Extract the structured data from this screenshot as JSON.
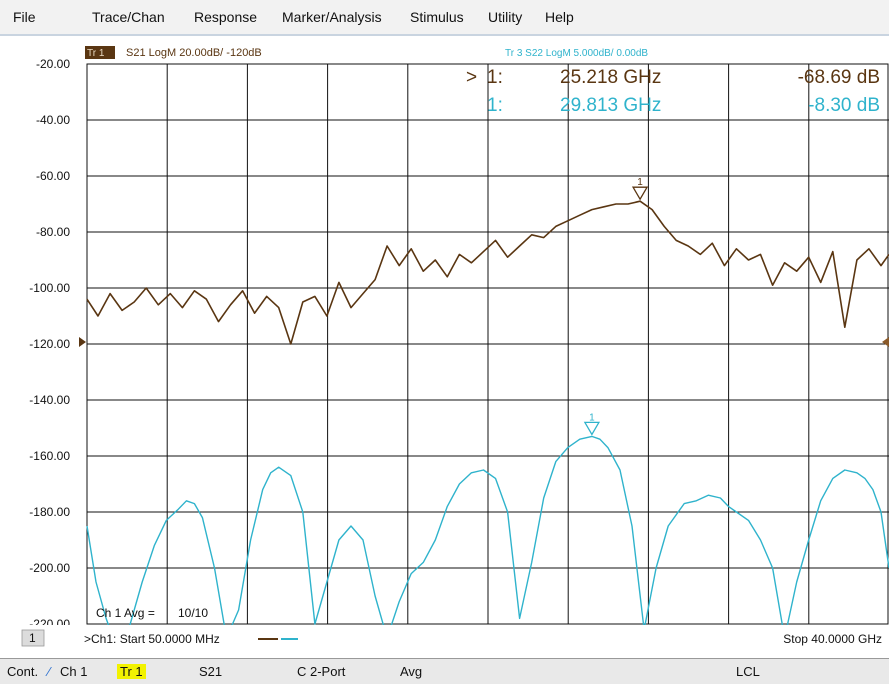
{
  "menu": [
    "File",
    "Trace/Chan",
    "Response",
    "Marker/Analysis",
    "Stimulus",
    "Utility",
    "Help"
  ],
  "trace1": {
    "tag": "Tr 1",
    "label": "S21 LogM 20.00dB/ -120dB",
    "color": "#5a3612",
    "marker": {
      "prefix": ">",
      "id": "1:",
      "freq": "25.218 GHz",
      "value": "-68.69 dB",
      "number": "1"
    }
  },
  "trace3": {
    "label": "Tr 3  S22 LogM 5.000dB/ 0.00dB",
    "color": "#2fb3cc",
    "marker": {
      "id": "1:",
      "freq": "29.813 GHz",
      "value": "-8.30 dB",
      "number": "1"
    }
  },
  "avg_label": "Ch 1 Avg =",
  "avg_value": "10/10",
  "channel_number": "1",
  "start_label": ">Ch1: Start  50.0000 MHz",
  "stop_label": "Stop  40.0000 GHz",
  "status": {
    "cont": "Cont.",
    "ch": "Ch 1",
    "tr": "Tr 1",
    "param": "S21",
    "port": "C  2-Port",
    "avg": "Avg",
    "lcl": "LCL"
  },
  "colors": {
    "grid": "#111111",
    "screen_bg": "#ffffff",
    "trace1": "#5a3612",
    "trace3": "#2fb3cc",
    "menubar": "#f2f2f2",
    "tr_highlight": "#f2f200"
  },
  "chart_data": {
    "type": "line",
    "xlabel": "",
    "ylabel": "",
    "x_range_ghz": [
      0.05,
      40.0
    ],
    "y_range_db_trace1": [
      -220,
      -20
    ],
    "y_ticks": [
      -20,
      -40,
      -60,
      -80,
      -100,
      -120,
      -140,
      -160,
      -180,
      -200,
      -220
    ],
    "grid": true,
    "reference_level_db": -120,
    "series": [
      {
        "name": "S21",
        "x": [
          0.05,
          0.6,
          1.2,
          1.8,
          2.4,
          3.0,
          3.6,
          4.2,
          4.8,
          5.4,
          6.0,
          6.6,
          7.2,
          7.8,
          8.4,
          9.0,
          9.6,
          10.2,
          10.8,
          11.4,
          12.0,
          12.6,
          13.2,
          13.8,
          14.4,
          15.0,
          15.6,
          16.2,
          16.8,
          17.4,
          18.0,
          18.6,
          19.2,
          19.8,
          20.4,
          21.0,
          21.6,
          22.2,
          22.8,
          23.4,
          24.0,
          24.6,
          25.2,
          25.8,
          26.4,
          27.0,
          27.6,
          28.2,
          28.8,
          29.4,
          30.0,
          30.6,
          31.2,
          31.8,
          32.4,
          33.0,
          33.6,
          34.2,
          34.8,
          35.4,
          36.0,
          36.6,
          37.2,
          37.8,
          38.4,
          39.0,
          39.6,
          40.0
        ],
        "values": [
          -104,
          -110,
          -102,
          -108,
          -105,
          -100,
          -106,
          -102,
          -107,
          -101,
          -104,
          -112,
          -106,
          -101,
          -109,
          -103,
          -107,
          -120,
          -105,
          -103,
          -110,
          -98,
          -107,
          -102,
          -97,
          -85,
          -92,
          -86,
          -94,
          -90,
          -96,
          -88,
          -91,
          -87,
          -83,
          -89,
          -85,
          -81,
          -82,
          -78,
          -76,
          -74,
          -72,
          -71,
          -70,
          -70,
          -69,
          -72,
          -78,
          -83,
          -85,
          -88,
          -84,
          -92,
          -86,
          -90,
          -88,
          -99,
          -91,
          -94,
          -89,
          -98,
          -87,
          -114,
          -90,
          -86,
          -92,
          -88
        ]
      },
      {
        "name": "S22",
        "x": [
          0.05,
          0.5,
          1.0,
          1.6,
          2.2,
          2.8,
          3.4,
          4.0,
          4.6,
          5.0,
          5.4,
          5.8,
          6.4,
          7.0,
          7.6,
          8.2,
          8.8,
          9.2,
          9.6,
          10.2,
          10.8,
          11.4,
          12.0,
          12.6,
          13.2,
          13.8,
          14.4,
          15.0,
          15.6,
          16.2,
          16.8,
          17.4,
          18.0,
          18.6,
          19.2,
          19.8,
          20.4,
          21.0,
          21.6,
          22.2,
          22.8,
          23.4,
          24.0,
          24.6,
          25.2,
          25.6,
          26.0,
          26.6,
          27.2,
          27.8,
          28.4,
          29.0,
          29.8,
          30.4,
          31.0,
          31.6,
          32.0,
          32.4,
          33.0,
          33.6,
          34.2,
          34.8,
          35.4,
          36.0,
          36.6,
          37.2,
          37.8,
          38.4,
          38.8,
          39.2,
          39.6,
          40.0
        ],
        "values": [
          -185,
          -205,
          -218,
          -230,
          -220,
          -205,
          -192,
          -183,
          -179,
          -176,
          -177,
          -182,
          -200,
          -225,
          -215,
          -190,
          -172,
          -166,
          -164,
          -167,
          -180,
          -220,
          -205,
          -190,
          -185,
          -190,
          -210,
          -225,
          -212,
          -202,
          -198,
          -190,
          -178,
          -170,
          -166,
          -165,
          -168,
          -180,
          -218,
          -198,
          -175,
          -162,
          -157,
          -154,
          -153,
          -154,
          -157,
          -165,
          -185,
          -222,
          -200,
          -185,
          -177,
          -176,
          -174,
          -175,
          -178,
          -180,
          -183,
          -190,
          -200,
          -225,
          -205,
          -190,
          -176,
          -168,
          -165,
          -166,
          -168,
          -172,
          -180,
          -200
        ]
      }
    ]
  }
}
